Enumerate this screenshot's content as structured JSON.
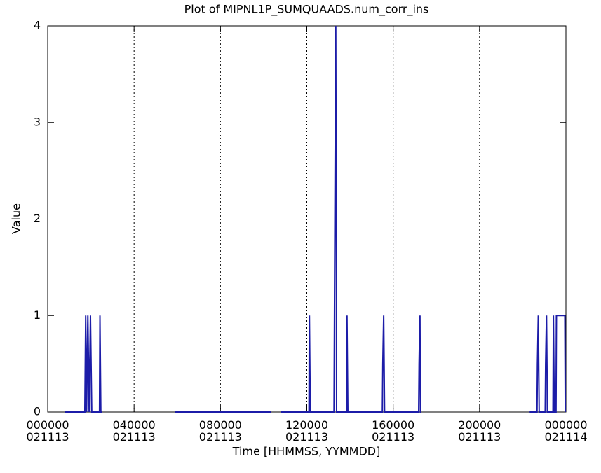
{
  "chart_data": {
    "type": "line",
    "title": "Plot of MIPNL1P_SUMQUAADS.num_corr_ins",
    "xlabel": "Time [HHMMSS, YYMMDD]",
    "ylabel": "Value",
    "xlim": [
      0,
      24
    ],
    "ylim": [
      0,
      4
    ],
    "xticks": [
      {
        "value": 0,
        "label": [
          "000000",
          "021113"
        ]
      },
      {
        "value": 4,
        "label": [
          "040000",
          "021113"
        ]
      },
      {
        "value": 8,
        "label": [
          "080000",
          "021113"
        ]
      },
      {
        "value": 12,
        "label": [
          "120000",
          "021113"
        ]
      },
      {
        "value": 16,
        "label": [
          "160000",
          "021113"
        ]
      },
      {
        "value": 20,
        "label": [
          "200000",
          "021113"
        ]
      },
      {
        "value": 24,
        "label": [
          "000000",
          "021114"
        ]
      }
    ],
    "yticks": [
      0,
      1,
      2,
      3,
      4
    ],
    "grid": "x",
    "series": [
      {
        "color": "#1c1ca8",
        "x": [
          0.81,
          1.72,
          1.74,
          1.76,
          1.8,
          1.86,
          1.92,
          1.98,
          2.04,
          2.4,
          2.42,
          2.46,
          2.5,
          null,
          5.88,
          10.36,
          null,
          10.8,
          12.1,
          12.12,
          12.16,
          13.26,
          13.3,
          13.34,
          13.38,
          13.84,
          13.86,
          13.9,
          15.5,
          15.52,
          15.56,
          15.6,
          17.18,
          17.2,
          17.24,
          17.26,
          17.28,
          null,
          22.32,
          22.66,
          22.68,
          22.72,
          22.76,
          23.04,
          23.06,
          23.1,
          23.14,
          23.4,
          23.42,
          23.46,
          23.54,
          23.56,
          23.95,
          23.97
        ],
        "values": [
          0,
          0,
          0.5,
          1,
          0,
          1,
          0,
          1,
          0,
          0,
          1,
          0,
          0,
          null,
          0,
          0,
          null,
          0,
          0,
          1,
          0,
          0,
          2,
          4,
          0,
          0,
          1,
          0,
          0,
          0.5,
          1,
          0,
          0,
          0.5,
          1,
          0,
          0,
          null,
          0,
          0,
          0.5,
          1,
          0,
          0,
          0.5,
          1,
          0,
          0,
          1,
          0,
          0,
          1,
          1,
          0
        ]
      }
    ]
  }
}
